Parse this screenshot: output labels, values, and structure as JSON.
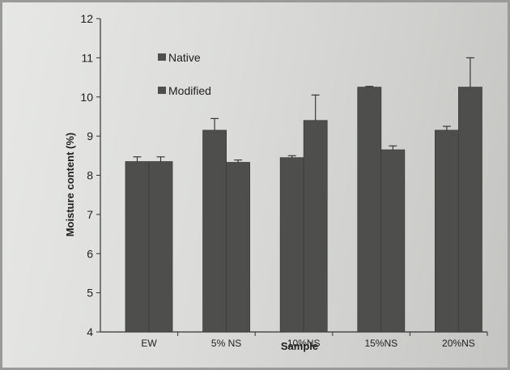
{
  "chart_data": {
    "type": "bar",
    "title": "",
    "xlabel": "Sample",
    "ylabel": "Moisture content (%)",
    "categories": [
      "EW",
      "5% NS",
      "10%NS",
      "15%NS",
      "20%NS"
    ],
    "series": [
      {
        "name": "Native",
        "values": [
          8.35,
          9.15,
          8.45,
          10.25,
          9.15
        ],
        "errors": [
          0.12,
          0.3,
          0.05,
          0.02,
          0.1
        ]
      },
      {
        "name": "Modified",
        "values": [
          8.35,
          8.33,
          9.4,
          8.65,
          10.25
        ],
        "errors": [
          0.12,
          0.06,
          0.65,
          0.1,
          0.75
        ]
      }
    ],
    "ylim": [
      4,
      12
    ],
    "yticks": [
      "4",
      "5",
      "6",
      "7",
      "8",
      "9",
      "10",
      "11",
      "12"
    ],
    "grid": false,
    "legend_position": "top-left",
    "colors": {
      "bar": "#4e4f4d",
      "bar_edge": "#3a3b39",
      "error": "#2a2a2a",
      "axis": "#333333"
    }
  }
}
